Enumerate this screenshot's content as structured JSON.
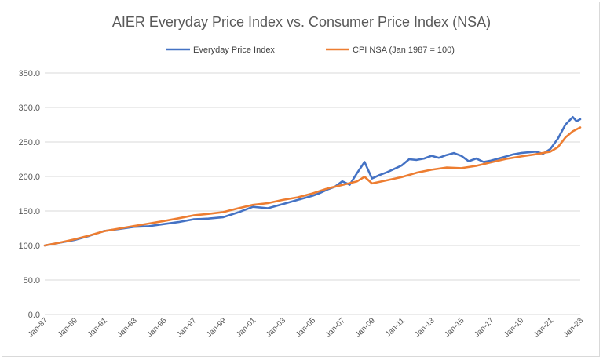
{
  "chart_data": {
    "type": "line",
    "title": "AIER Everyday Price Index vs. Consumer Price Index (NSA)",
    "xlabel": "",
    "ylabel": "",
    "ylim": [
      0,
      350
    ],
    "yticks": [
      "0.0",
      "50.0",
      "100.0",
      "150.0",
      "200.0",
      "250.0",
      "300.0",
      "350.0"
    ],
    "xlim": [
      "Jan-87",
      "Jan-23"
    ],
    "xticks": [
      "Jan-87",
      "Jan-89",
      "Jan-91",
      "Jan-93",
      "Jan-95",
      "Jan-97",
      "Jan-99",
      "Jan-01",
      "Jan-03",
      "Jan-05",
      "Jan-07",
      "Jan-09",
      "Jan-11",
      "Jan-13",
      "Jan-15",
      "Jan-17",
      "Jan-19",
      "Jan-21",
      "Jan-23"
    ],
    "grid": true,
    "legend_position": "top",
    "series": [
      {
        "name": "Everyday Price Index",
        "color": "#4472C4",
        "x": [
          "Jan-87",
          "Jan-88",
          "Jan-89",
          "Jan-90",
          "Jan-91",
          "Jan-92",
          "Jan-93",
          "Jan-94",
          "Jan-95",
          "Jan-96",
          "Jan-97",
          "Jan-98",
          "Jan-99",
          "Jan-00",
          "Jan-01",
          "Jan-02",
          "Jan-03",
          "Jan-04",
          "Jan-05",
          "Jul-05",
          "Jan-06",
          "Jul-06",
          "Jan-07",
          "Jul-07",
          "Jan-08",
          "Jul-08",
          "Jan-09",
          "Jul-09",
          "Jan-10",
          "Jul-10",
          "Jan-11",
          "Jul-11",
          "Jan-12",
          "Jul-12",
          "Jan-13",
          "Jul-13",
          "Jan-14",
          "Jul-14",
          "Jan-15",
          "Jul-15",
          "Jan-16",
          "Jul-16",
          "Jan-17",
          "Jul-17",
          "Jan-18",
          "Jul-18",
          "Jan-19",
          "Jul-19",
          "Jan-20",
          "Jul-20",
          "Jan-21",
          "Jul-21",
          "Jan-22",
          "Jul-22",
          "Oct-22",
          "Jan-23"
        ],
        "y": [
          100.0,
          104.0,
          108.0,
          114.0,
          121.0,
          124.0,
          127.0,
          128.0,
          131.0,
          134.0,
          138.0,
          139.0,
          141.0,
          148.0,
          156.0,
          154.0,
          160.0,
          166.0,
          172.0,
          176.0,
          181.0,
          185.0,
          193.0,
          188.0,
          205.0,
          221.0,
          197.0,
          202.0,
          206.0,
          211.0,
          216.0,
          225.0,
          224.0,
          226.0,
          230.0,
          227.0,
          231.0,
          234.0,
          230.0,
          222.0,
          226.0,
          221.0,
          223.0,
          226.0,
          229.0,
          232.0,
          234.0,
          235.0,
          236.0,
          233.0,
          240.0,
          255.0,
          275.0,
          286.0,
          280.0,
          283.0
        ]
      },
      {
        "name": "CPI NSA (Jan 1987 = 100)",
        "color": "#ED7D31",
        "x": [
          "Jan-87",
          "Jan-88",
          "Jan-89",
          "Jan-90",
          "Jan-91",
          "Jan-92",
          "Jan-93",
          "Jan-94",
          "Jan-95",
          "Jan-96",
          "Jan-97",
          "Jan-98",
          "Jan-99",
          "Jan-00",
          "Jan-01",
          "Jan-02",
          "Jan-03",
          "Jan-04",
          "Jan-05",
          "Jan-06",
          "Jan-07",
          "Jan-08",
          "Jul-08",
          "Jan-09",
          "Jan-10",
          "Jan-11",
          "Jan-12",
          "Jan-13",
          "Jan-14",
          "Jan-15",
          "Jan-16",
          "Jan-17",
          "Jan-18",
          "Jan-19",
          "Jan-20",
          "Jan-21",
          "Jul-21",
          "Jan-22",
          "Jul-22",
          "Jan-23"
        ],
        "y": [
          100.0,
          104.1,
          109.0,
          114.5,
          120.8,
          124.5,
          128.3,
          131.8,
          135.4,
          139.4,
          143.6,
          145.8,
          148.4,
          153.9,
          158.9,
          161.4,
          166.0,
          169.8,
          175.5,
          182.6,
          187.6,
          193.0,
          199.5,
          189.9,
          194.4,
          199.2,
          205.5,
          209.8,
          213.0,
          212.0,
          215.3,
          220.4,
          225.5,
          229.0,
          232.2,
          236.0,
          242.5,
          256.5,
          265.5,
          271.0
        ]
      }
    ]
  }
}
